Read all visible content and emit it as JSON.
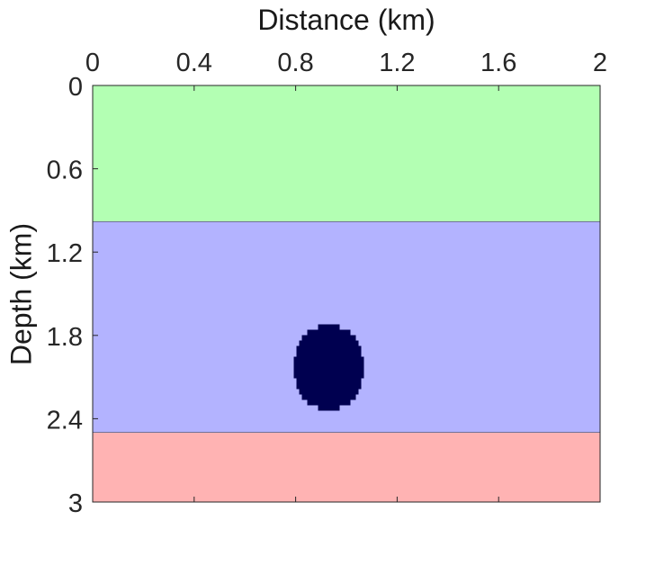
{
  "chart_data": {
    "type": "heatmap",
    "title": "",
    "xlabel": "Distance (km)",
    "ylabel": "Depth (km)",
    "xlim": [
      0,
      2
    ],
    "ylim": [
      0,
      3
    ],
    "y_direction": "down",
    "x_axis_position": "top",
    "x_ticks": [
      "0",
      "0.4",
      "0.8",
      "1.2",
      "1.6",
      "2"
    ],
    "y_ticks": [
      "0",
      "0.6",
      "1.2",
      "1.8",
      "2.4",
      "3"
    ],
    "x_tick_values": [
      0,
      0.4,
      0.8,
      1.2,
      1.6,
      2
    ],
    "y_tick_values": [
      0,
      0.6,
      1.2,
      1.8,
      2.4,
      3
    ],
    "grid": false,
    "layers": [
      {
        "depth_top": 0,
        "depth_bottom": 0.98,
        "color": "#b3ffb3"
      },
      {
        "depth_top": 0.98,
        "depth_bottom": 2.5,
        "color": "#b3b3ff"
      },
      {
        "depth_top": 2.5,
        "depth_bottom": 3,
        "color": "#ffb3b3"
      }
    ],
    "inclusion": {
      "shape": "ellipse",
      "center_x": 0.93,
      "center_depth": 2.03,
      "radius_x": 0.14,
      "radius_depth": 0.31,
      "color": "#000050"
    }
  }
}
